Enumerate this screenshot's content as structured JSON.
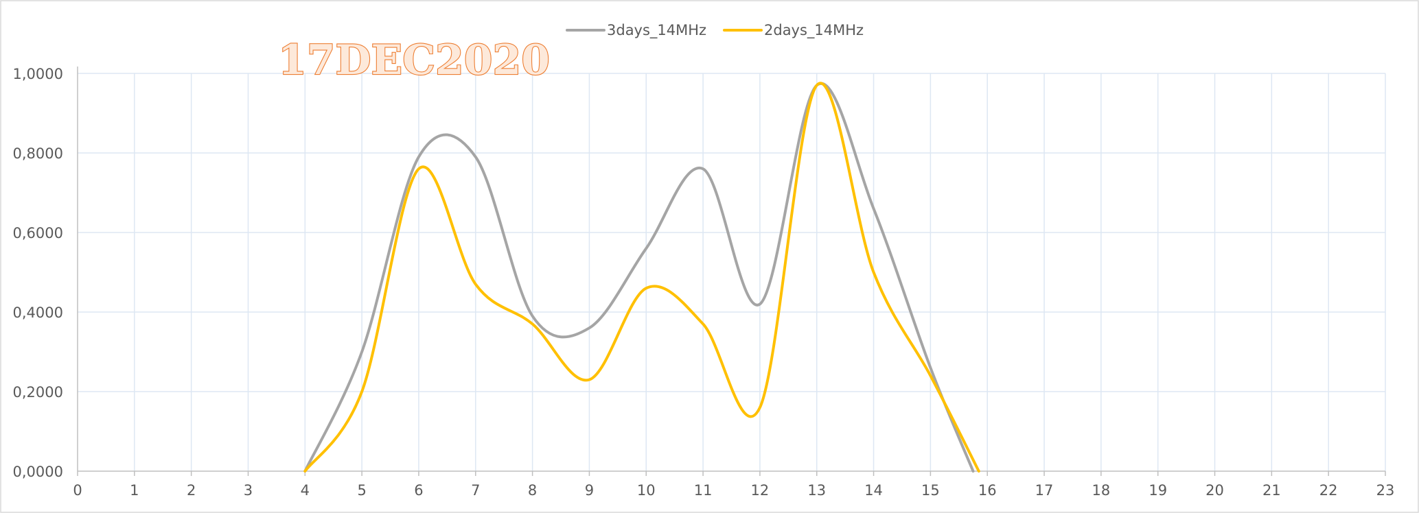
{
  "chart_data": {
    "type": "line",
    "smooth": true,
    "title": "17DEC2020",
    "xlabel": "",
    "ylabel": "",
    "xlim": [
      0,
      23
    ],
    "ylim": [
      0,
      1
    ],
    "x_ticks": [
      "0",
      "1",
      "2",
      "3",
      "4",
      "5",
      "6",
      "7",
      "8",
      "9",
      "10",
      "11",
      "12",
      "13",
      "14",
      "15",
      "16",
      "17",
      "18",
      "19",
      "20",
      "21",
      "22",
      "23"
    ],
    "y_ticks": [
      "0,0000",
      "0,2000",
      "0,4000",
      "0,6000",
      "0,8000",
      "1,0000"
    ],
    "y_tick_values": [
      0,
      0.2,
      0.4,
      0.6,
      0.8,
      1.0
    ],
    "grid": true,
    "legend_position": "top-center",
    "series": [
      {
        "name": "3days_14MHz",
        "color": "#a5a5a5",
        "x": [
          4,
          5,
          6,
          7,
          8,
          9,
          10,
          11,
          12,
          13,
          14,
          15,
          15.75
        ],
        "values": [
          0.0,
          0.3,
          0.79,
          0.79,
          0.39,
          0.36,
          0.56,
          0.76,
          0.42,
          0.97,
          0.66,
          0.26,
          0.0
        ]
      },
      {
        "name": "2days_14MHz",
        "color": "#ffc000",
        "x": [
          4,
          5,
          6,
          7,
          8,
          9,
          10,
          11,
          12,
          13,
          14,
          15,
          15.85
        ],
        "values": [
          0.0,
          0.2,
          0.76,
          0.47,
          0.37,
          0.23,
          0.46,
          0.37,
          0.16,
          0.97,
          0.5,
          0.24,
          0.0
        ]
      }
    ]
  }
}
